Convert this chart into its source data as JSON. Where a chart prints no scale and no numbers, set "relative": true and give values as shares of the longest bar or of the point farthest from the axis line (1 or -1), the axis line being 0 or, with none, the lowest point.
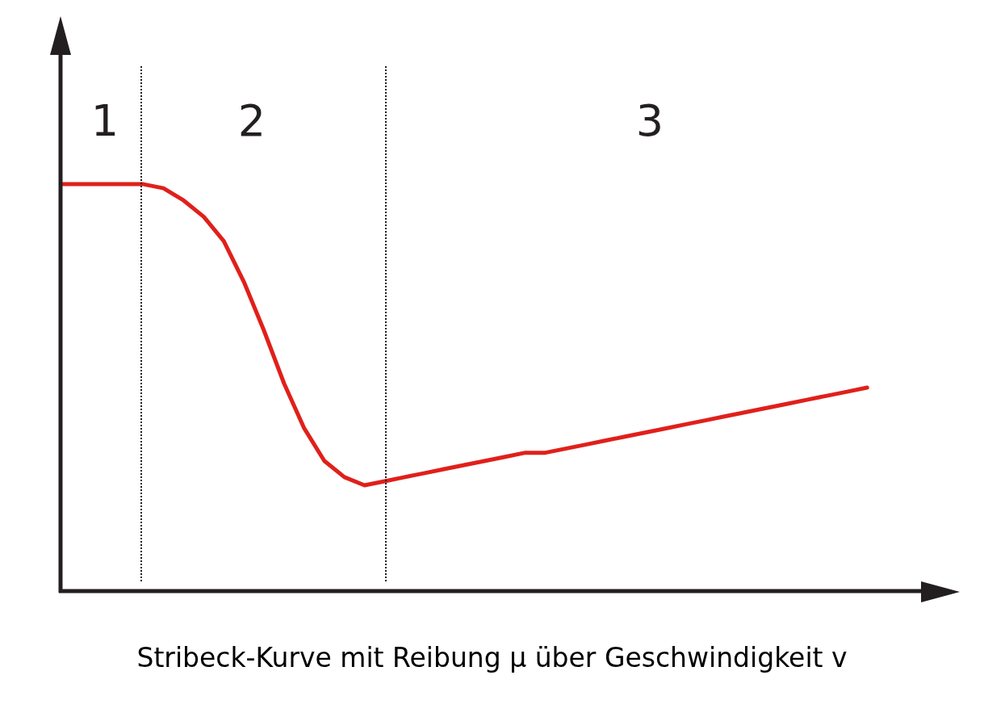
{
  "chart_data": {
    "type": "line",
    "title": "Stribeck-Kurve mit Reibung μ über Geschwindigkeit v",
    "relative": true,
    "tick_labels": false,
    "categories": [
      null,
      null,
      null,
      null,
      null,
      null,
      null,
      null,
      null,
      null,
      null,
      null,
      null,
      null,
      null,
      null,
      null,
      null,
      null,
      null,
      null,
      null,
      null,
      null,
      null,
      null,
      null,
      null,
      null,
      null,
      null,
      null,
      null,
      null,
      null,
      null,
      null,
      null,
      null,
      null,
      null,
      null,
      null
    ],
    "series": [
      {
        "color": "#e0201b",
        "values": [
          1.0,
          1.0,
          1.0,
          1.0,
          1.0,
          0.99,
          0.96,
          0.92,
          0.86,
          0.76,
          0.64,
          0.51,
          0.4,
          0.32,
          0.28,
          0.26,
          0.27,
          0.28,
          0.29,
          0.3,
          0.31,
          0.32,
          0.33,
          0.34,
          0.34,
          0.35,
          0.36,
          0.37,
          0.38,
          0.39,
          0.4,
          0.41,
          0.42,
          0.43,
          0.44,
          0.45,
          0.46,
          0.47,
          0.48,
          0.49,
          0.5,
          null,
          null
        ]
      }
    ],
    "annotations": [
      "1",
      "2",
      "3"
    ],
    "legend": false,
    "marker": "none",
    "line_style": "solid"
  }
}
